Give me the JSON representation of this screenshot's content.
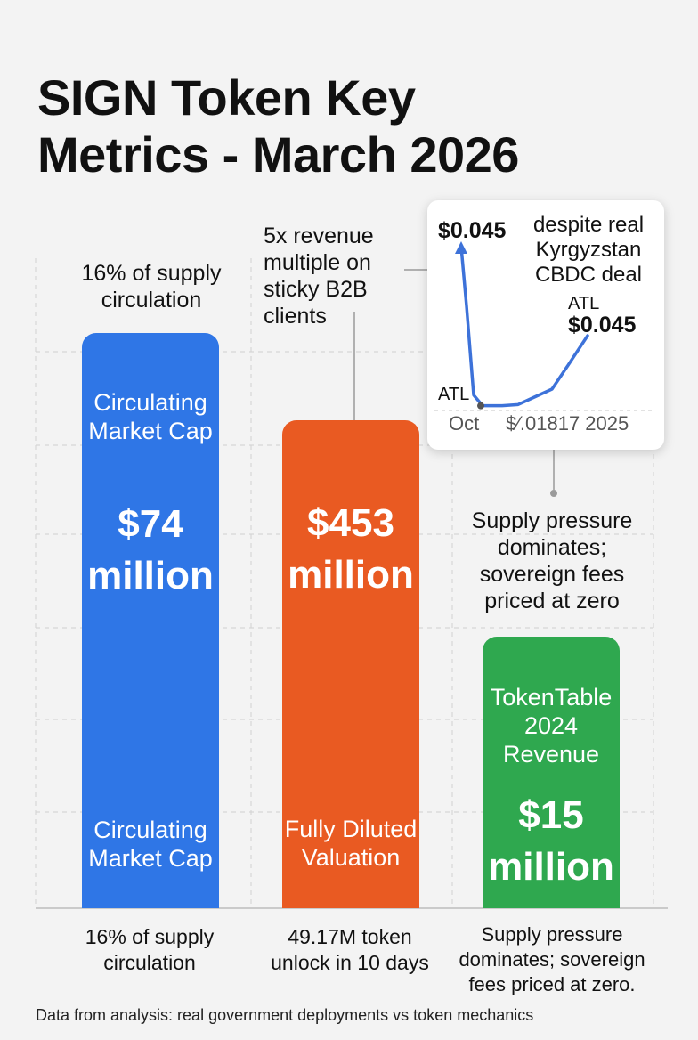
{
  "title_line1": "SIGN Token Key",
  "title_line2": "Metrics - March 2026",
  "colors": {
    "bar1": "#2f76e6",
    "bar2": "#e95a22",
    "bar3": "#2fa84f",
    "line": "#3d72d9"
  },
  "chart_data": {
    "type": "bar",
    "categories": [
      "Circulating Market Cap",
      "Fully Diluted Valuation",
      "TokenTable 2024 Revenue"
    ],
    "series": [
      {
        "values": [
          74,
          453,
          15
        ]
      }
    ],
    "bars": [
      {
        "top_label": "Circulating Market Cap",
        "value_label": [
          "$74",
          "million"
        ],
        "bottom_label": "Circulating Market Cap"
      },
      {
        "top_label": "",
        "value_label": [
          "$453",
          "million"
        ],
        "bottom_label": "Fully Diluted Valuation"
      },
      {
        "top_label": "TokenTable 2024 Revenue",
        "value_label": [
          "$15",
          "million"
        ],
        "bottom_label": ""
      }
    ],
    "annotations": {
      "above_bar1": [
        "16% of supply",
        "circulation"
      ],
      "above_bar2": [
        "5x revenue",
        "multiple on",
        "sticky B2B",
        "clients"
      ],
      "above_bar3": [
        "Supply pressure",
        "dominates;",
        "sovereign fees",
        "priced at zero"
      ]
    },
    "bottom_labels": [
      [
        "16% of supply",
        "circulation"
      ],
      [
        "49.17M token",
        "unlock in 10 days"
      ],
      [
        "Supply pressure",
        "dominates; sovereign",
        "fees priced at zero."
      ]
    ],
    "inset": {
      "type": "line",
      "price_label": "$0.045",
      "note": [
        "despite real",
        "Kyrgyzstan",
        "CBDC deal"
      ],
      "atl_label_right": "ATL",
      "atl_price_right": "$0.045",
      "atl_label_left": "ATL",
      "x_labels": [
        "Oct",
        "$⁄.01817 2025"
      ],
      "y": [
        0.045,
        0.035,
        0.02,
        0.0182,
        0.0182,
        0.0184,
        0.0195,
        0.021,
        0.025,
        0.03
      ]
    }
  },
  "source": "Data from analysis: real government deployments vs token mechanics"
}
